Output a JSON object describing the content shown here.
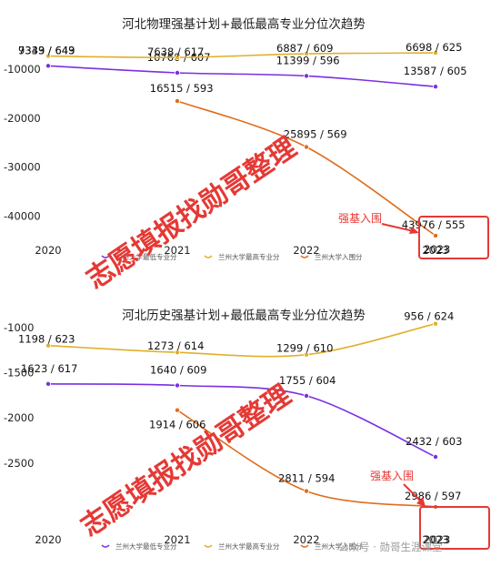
{
  "colors": {
    "lowest": "#7b2fe0",
    "highest": "#e0b02a",
    "admit": "#e06d1c",
    "annotation": "#e53935",
    "watermark": "#e53935"
  },
  "watermark_text": "志愿填报找勋哥整理",
  "footer_text": "公众号 · 勋哥生涯课堂",
  "chart_data": [
    {
      "type": "line",
      "title": "河北物理强基计划+最低最高专业分位次趋势",
      "categories": [
        "2020",
        "2021",
        "2022",
        "2023"
      ],
      "ylim": [
        -45000,
        0
      ],
      "yticks": [
        {
          "value": -10000,
          "label": "-10000"
        },
        {
          "value": -20000,
          "label": "-20000"
        },
        {
          "value": -30000,
          "label": "-30000"
        },
        {
          "value": -40000,
          "label": "-40000"
        }
      ],
      "series": [
        {
          "name": "兰州大学最低专业分",
          "color_key": "lowest",
          "values": [
            -9339,
            -10760,
            -11399,
            -13587
          ],
          "labels": [
            "9339 / 643",
            "10760 / 607",
            "11399 / 596",
            "13587 / 605"
          ]
        },
        {
          "name": "兰州大学最高专业分",
          "color_key": "highest",
          "values": [
            -7343,
            -7638,
            -6887,
            -6698
          ],
          "labels": [
            "7343 / 649",
            "7638 / 617",
            "6887 / 609",
            "6698 / 625"
          ]
        },
        {
          "name": "兰州大学入围分",
          "color_key": "admit",
          "values": [
            null,
            -16515,
            -25895,
            -43976
          ],
          "labels": [
            null,
            "16515 / 593",
            "25895 / 569",
            "43976 / 555"
          ]
        }
      ],
      "annotation": {
        "text": "强基入围",
        "box_text": "2023"
      },
      "grid": false,
      "legend": "bottom"
    },
    {
      "type": "line",
      "title": "河北历史强基计划+最低最高专业分位次趋势",
      "categories": [
        "2020",
        "2021",
        "2022",
        "2023"
      ],
      "ylim": [
        -3100,
        -830
      ],
      "yticks": [
        {
          "value": -1000,
          "label": "-1000"
        },
        {
          "value": -1500,
          "label": "-1500"
        },
        {
          "value": -2000,
          "label": "-2000"
        },
        {
          "value": -2500,
          "label": "-2500"
        }
      ],
      "series": [
        {
          "name": "兰州大学最低专业分",
          "color_key": "lowest",
          "values": [
            -1623,
            -1640,
            -1755,
            -2432
          ],
          "labels": [
            "1623 / 617",
            "1640 / 609",
            "1755 / 604",
            "2432 / 603"
          ]
        },
        {
          "name": "兰州大学最高专业分",
          "color_key": "highest",
          "values": [
            -1198,
            -1273,
            -1299,
            -956
          ],
          "labels": [
            "1198 / 623",
            "1273 / 614",
            "1299 / 610",
            "956 / 624"
          ]
        },
        {
          "name": "兰州大学入围分",
          "color_key": "admit",
          "values": [
            null,
            -1914,
            -2811,
            -2986
          ],
          "labels": [
            null,
            "1914 / 606",
            "2811 / 594",
            "2986 / 597"
          ]
        }
      ],
      "annotation": {
        "text": "强基入围",
        "box_text": "2023"
      },
      "grid": false,
      "legend": "bottom"
    }
  ]
}
